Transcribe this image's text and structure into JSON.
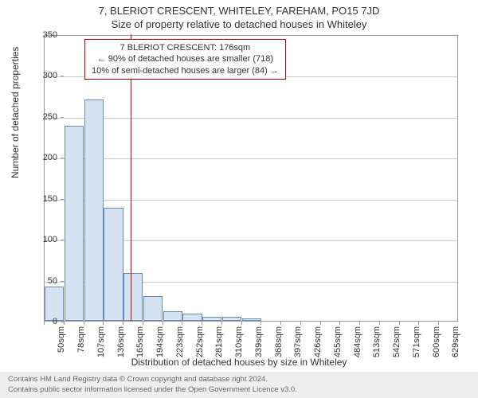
{
  "titles": {
    "main": "7, BLERIOT CRESCENT, WHITELEY, FAREHAM, PO15 7JD",
    "sub": "Size of property relative to detached houses in Whiteley"
  },
  "axes": {
    "ylabel": "Number of detached properties",
    "xlabel": "Distribution of detached houses by size in Whiteley",
    "ylim": [
      0,
      350
    ],
    "ytick_step": 50,
    "yticks": [
      0,
      50,
      100,
      150,
      200,
      250,
      300,
      350
    ]
  },
  "chart": {
    "type": "histogram",
    "categories": [
      "50sqm",
      "78sqm",
      "107sqm",
      "136sqm",
      "165sqm",
      "194sqm",
      "223sqm",
      "252sqm",
      "281sqm",
      "310sqm",
      "339sqm",
      "368sqm",
      "397sqm",
      "426sqm",
      "455sqm",
      "484sqm",
      "513sqm",
      "542sqm",
      "571sqm",
      "600sqm",
      "629sqm"
    ],
    "values": [
      42,
      238,
      270,
      138,
      58,
      30,
      12,
      9,
      5,
      5,
      3,
      0,
      0,
      0,
      0,
      0,
      0,
      0,
      0,
      0,
      0
    ],
    "bar_color": "#d5e2f0",
    "bar_border_color": "#6a8bb5",
    "background_color": "#ffffff",
    "grid_color": "#cccccc",
    "border_color": "#999999",
    "marker_color": "#cc0000",
    "marker_x_position": 176,
    "marker_x_range": [
      50,
      658
    ]
  },
  "annotation": {
    "line1": "7 BLERIOT CRESCENT: 176sqm",
    "line2": "← 90% of detached houses are smaller (718)",
    "line3": "10% of semi-detached houses are larger (84) →",
    "border_color": "#cc0000",
    "fontsize": 11
  },
  "footer": {
    "line1": "Contains HM Land Registry data © Crown copyright and database right 2024.",
    "line2": "Contains public sector information licensed under the Open Government Licence v3.0.",
    "background": "#eeeeee",
    "color": "#666666"
  }
}
